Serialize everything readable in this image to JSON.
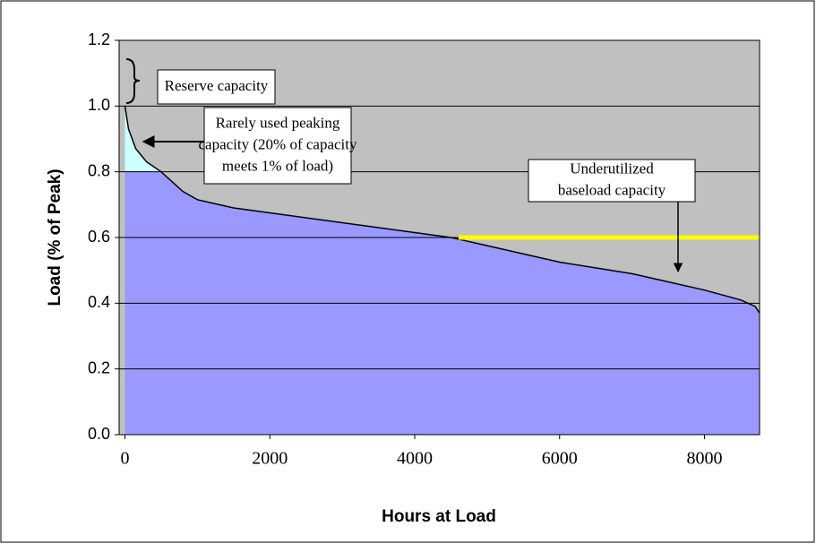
{
  "chart_data": {
    "type": "line",
    "x_label": "Hours at Load",
    "y_label": "Load (% of Peak)",
    "x": [
      0,
      50,
      150,
      300,
      500,
      800,
      1000,
      1500,
      2000,
      3000,
      4000,
      4500,
      5000,
      6000,
      7000,
      7500,
      8000,
      8500,
      8700,
      8760
    ],
    "values": [
      1.0,
      0.93,
      0.87,
      0.83,
      0.8,
      0.74,
      0.715,
      0.69,
      0.675,
      0.645,
      0.615,
      0.6,
      0.575,
      0.525,
      0.49,
      0.465,
      0.44,
      0.41,
      0.39,
      0.37
    ],
    "color": "#9999ff",
    "peak_color": "#ccffff",
    "background": "#c0c0c0",
    "xlim": [
      -80,
      8760
    ],
    "ylim": [
      0,
      1.2
    ],
    "xticks": [
      0,
      2000,
      4000,
      6000,
      8000
    ],
    "yticks": [
      {
        "value": 0,
        "label": "0.0"
      },
      0.2,
      0.4,
      0.6,
      0.8,
      {
        "value": 1,
        "label": "1.0"
      },
      1.2
    ],
    "grid": true,
    "annotations": [
      {
        "lines": [
          "Reserve capacity"
        ]
      },
      {
        "lines": [
          "Rarely used peaking",
          "capacity (20% of capacity",
          "meets 1% of load)"
        ]
      },
      {
        "lines": [
          "Underutilized",
          "baseload capacity"
        ]
      }
    ]
  }
}
